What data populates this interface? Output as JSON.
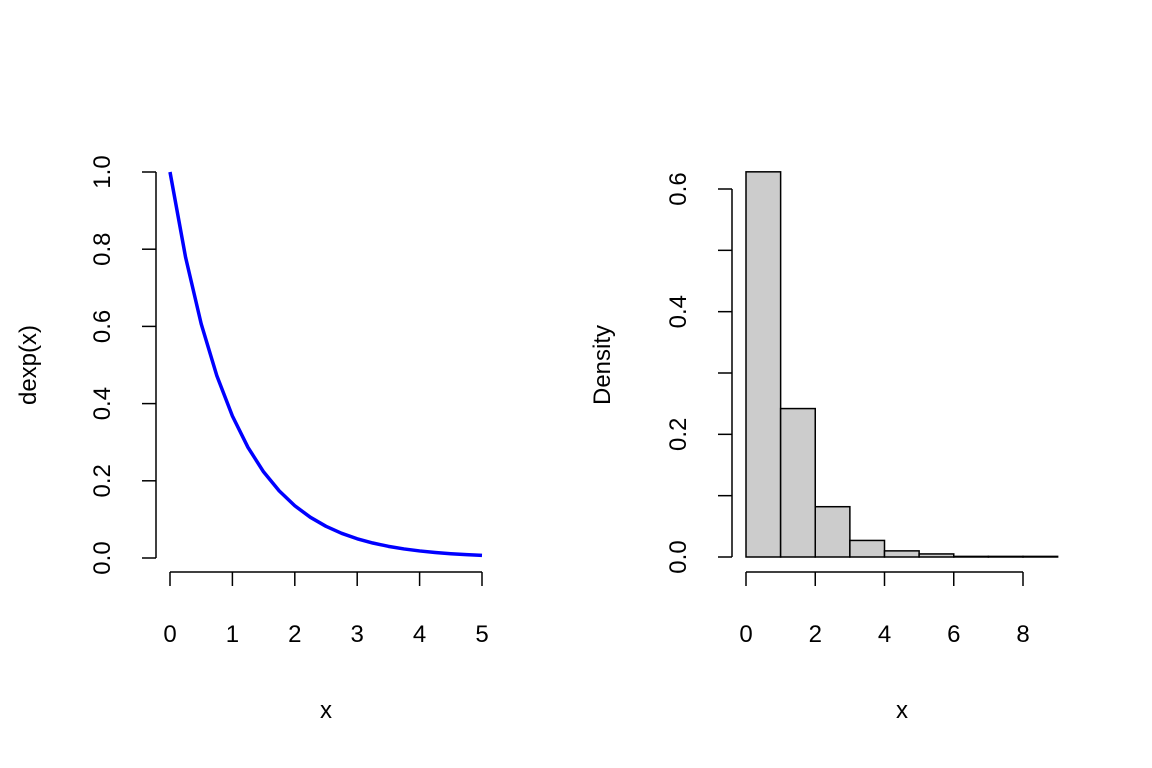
{
  "chart_data": [
    {
      "type": "line",
      "title": "",
      "xlabel": "x",
      "ylabel": "dexp(x)",
      "xlim": [
        0,
        5
      ],
      "ylim": [
        0,
        1
      ],
      "x_ticks": [
        "0",
        "1",
        "2",
        "3",
        "4",
        "5"
      ],
      "y_ticks": [
        "0.0",
        "0.2",
        "0.4",
        "0.6",
        "0.8",
        "1.0"
      ],
      "grid": false,
      "series": [
        {
          "color": "#0000ff",
          "x": [
            0,
            0.25,
            0.5,
            0.75,
            1,
            1.25,
            1.5,
            1.75,
            2,
            2.25,
            2.5,
            2.75,
            3,
            3.25,
            3.5,
            3.75,
            4,
            4.25,
            4.5,
            4.75,
            5
          ],
          "y": [
            1.0,
            0.7788,
            0.6065,
            0.4724,
            0.3679,
            0.2865,
            0.2231,
            0.1738,
            0.1353,
            0.1054,
            0.0821,
            0.0639,
            0.0498,
            0.0388,
            0.0302,
            0.0235,
            0.0183,
            0.0143,
            0.0111,
            0.0087,
            0.0067
          ]
        }
      ]
    },
    {
      "type": "bar",
      "title": "",
      "xlabel": "x",
      "ylabel": "Density",
      "xlim": [
        0,
        8
      ],
      "ylim": [
        0,
        0.6
      ],
      "x_ticks": [
        "0",
        "2",
        "4",
        "6",
        "8"
      ],
      "y_ticks": [
        "0.0",
        "0.2",
        "0.4",
        "0.6"
      ],
      "grid": false,
      "bar_fill": "#cccccc",
      "bins": [
        [
          0,
          1
        ],
        [
          1,
          2
        ],
        [
          2,
          3
        ],
        [
          3,
          4
        ],
        [
          4,
          5
        ],
        [
          5,
          6
        ],
        [
          6,
          7
        ],
        [
          7,
          8
        ],
        [
          8,
          9
        ]
      ],
      "values": [
        0.628,
        0.242,
        0.082,
        0.027,
        0.01,
        0.005,
        0.001,
        0.001,
        0.001
      ]
    }
  ]
}
